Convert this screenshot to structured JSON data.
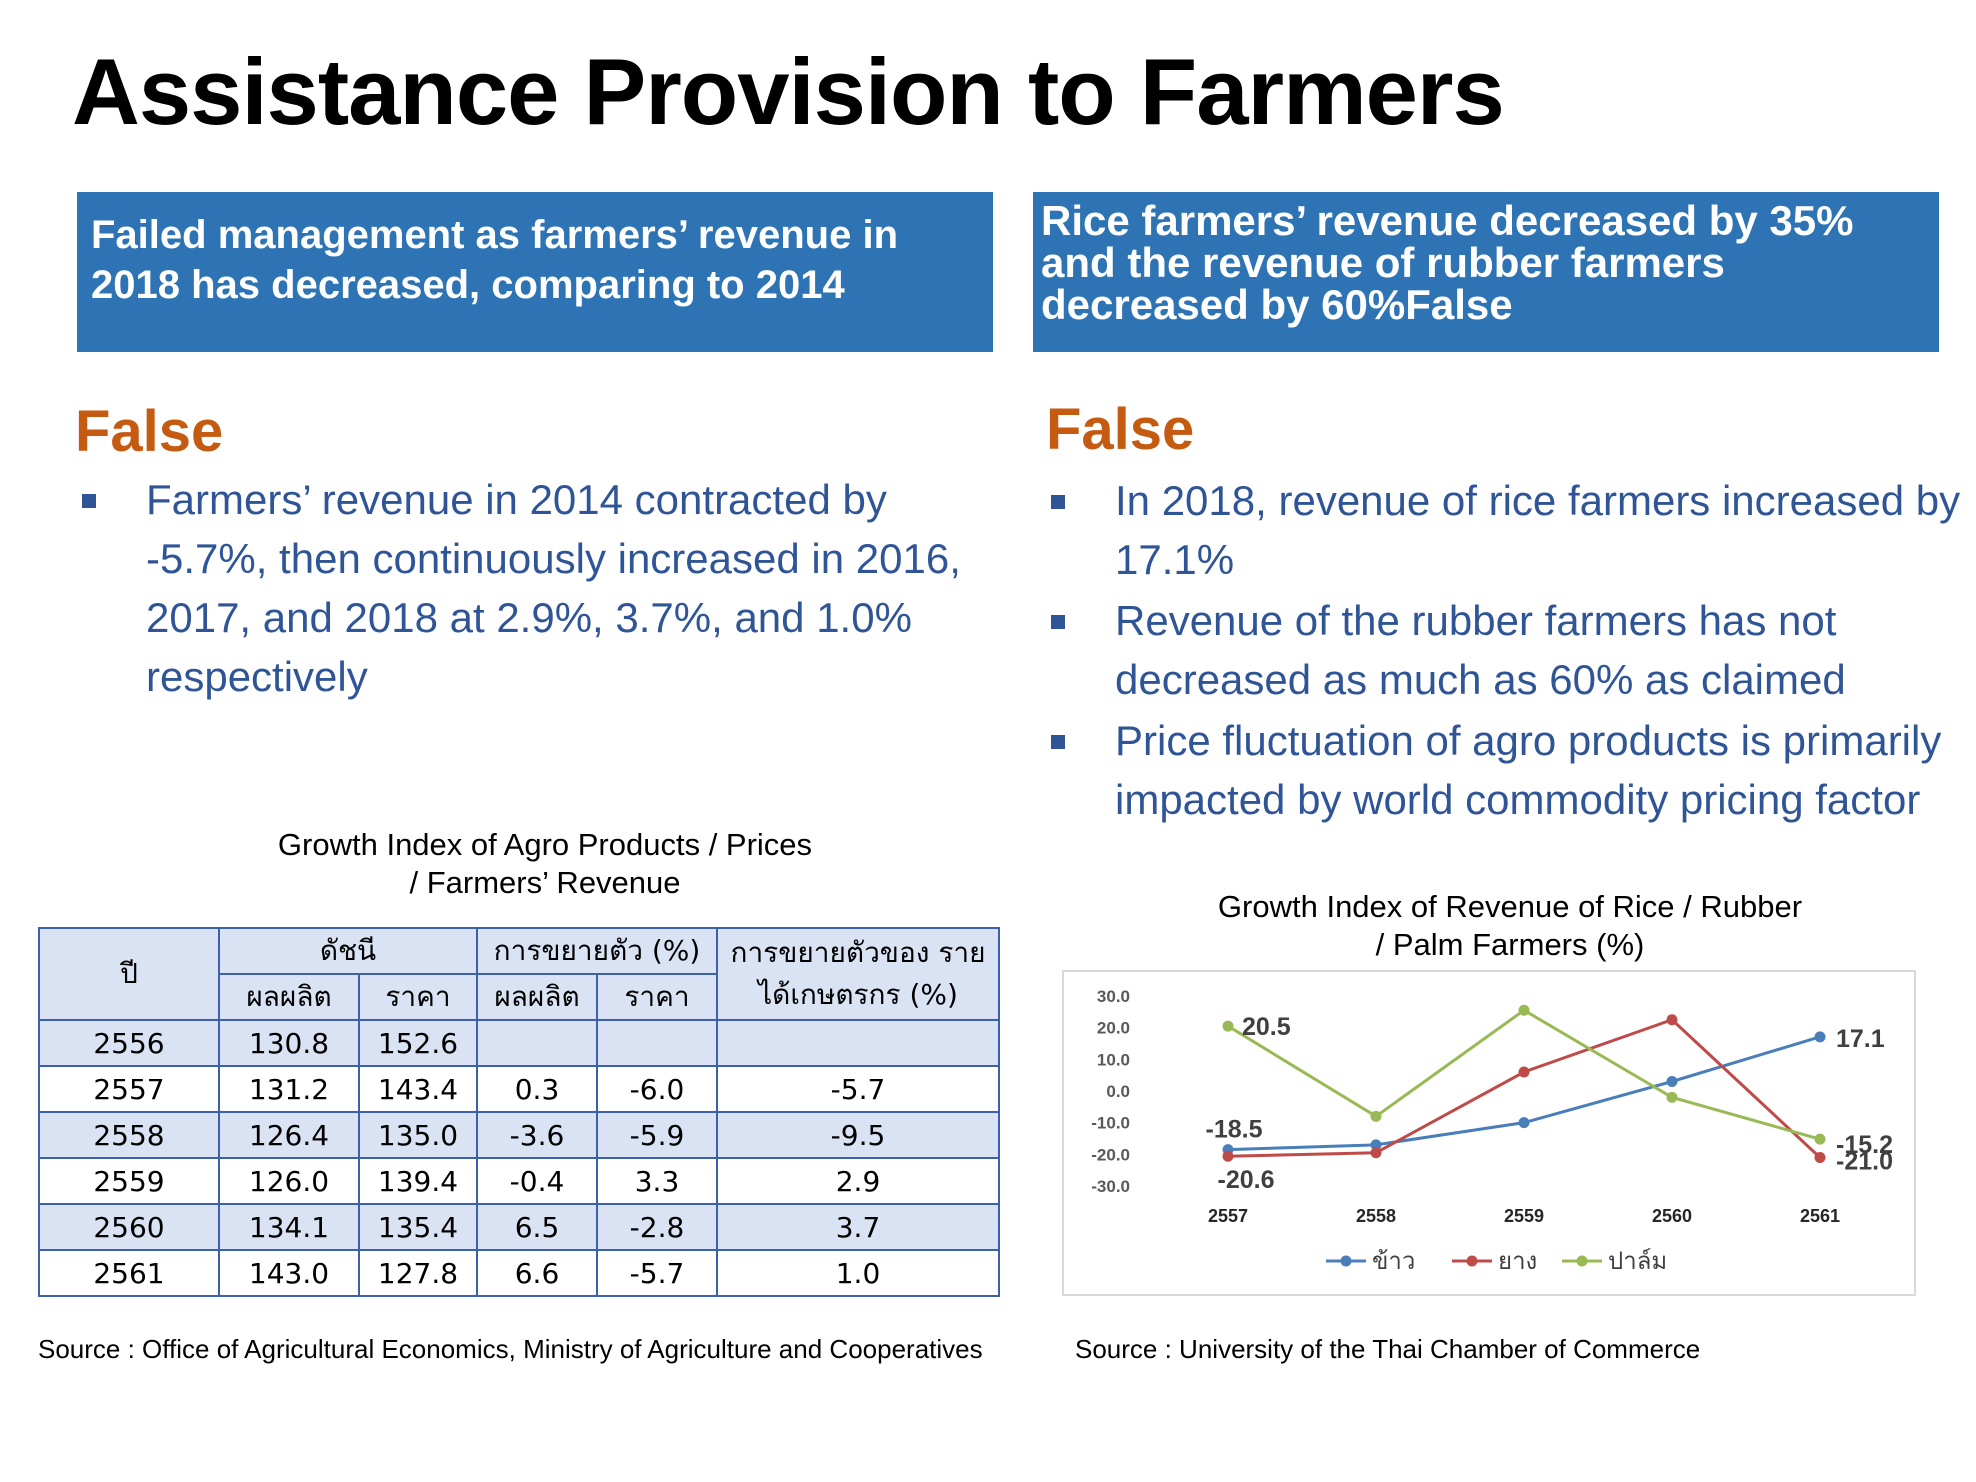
{
  "title": "Assistance Provision to Farmers",
  "left": {
    "claim": "Failed management as farmers’ revenue in 2018 has decreased, comparing to 2014",
    "verdict": "False",
    "bullets": [
      "Farmers’ revenue in 2014 contracted by -5.7%, then continuously increased in 2016, 2017, and 2018 at 2.9%, 3.7%, and 1.0% respectively"
    ],
    "table_caption_line1": "Growth Index of Agro Products / Prices",
    "table_caption_line2": "/ Farmers’ Revenue",
    "table": {
      "header": {
        "year": "ปี",
        "index": "ดัชนี",
        "growth": "การขยายตัว (%)",
        "revenue_growth": "การขยายตัวของ รายได้เกษตรกร (%)",
        "production": "ผลผลิต",
        "price": "ราคา"
      },
      "rows": [
        [
          "2556",
          "130.8",
          "152.6",
          "",
          "",
          ""
        ],
        [
          "2557",
          "131.2",
          "143.4",
          "0.3",
          "-6.0",
          "-5.7"
        ],
        [
          "2558",
          "126.4",
          "135.0",
          "-3.6",
          "-5.9",
          "-9.5"
        ],
        [
          "2559",
          "126.0",
          "139.4",
          "-0.4",
          "3.3",
          "2.9"
        ],
        [
          "2560",
          "134.1",
          "135.4",
          "6.5",
          "-2.8",
          "3.7"
        ],
        [
          "2561",
          "143.0",
          "127.8",
          "6.6",
          "-5.7",
          "1.0"
        ]
      ]
    },
    "source": "Source : Office of Agricultural Economics, Ministry of Agriculture and Cooperatives"
  },
  "right": {
    "claim": "Rice farmers’ revenue decreased by 35% and the revenue of rubber farmers decreased by 60%False",
    "verdict": "False",
    "bullets": [
      "In 2018, revenue of rice farmers increased by 17.1%",
      "Revenue of the rubber farmers has not decreased as much as 60% as claimed",
      "Price fluctuation of agro products is primarily impacted by world commodity pricing factor"
    ],
    "chart_caption_line1": "Growth Index of Revenue of Rice / Rubber",
    "chart_caption_line2": "/ Palm Farmers (%)",
    "source": "Source : University of the Thai Chamber of Commerce"
  },
  "chart_data": {
    "type": "line",
    "x": [
      "2557",
      "2558",
      "2559",
      "2560",
      "2561"
    ],
    "ylim": [
      -30,
      30
    ],
    "yticks": [
      "30.0",
      "20.0",
      "10.0",
      "0.0",
      "-10.0",
      "-20.0",
      "-30.0"
    ],
    "grid": false,
    "legend": "bottom",
    "series": [
      {
        "name": "ข้าว",
        "color": "#4a7ebb",
        "values": [
          -18.5,
          -17.0,
          -10.0,
          3.0,
          17.1
        ]
      },
      {
        "name": "ยาง",
        "color": "#be4b48",
        "values": [
          -20.6,
          -19.5,
          6.0,
          22.5,
          -21.0
        ]
      },
      {
        "name": "ปาล์ม",
        "color": "#98b954",
        "values": [
          20.5,
          -8.0,
          25.5,
          -2.0,
          -15.2
        ]
      }
    ],
    "data_labels": [
      "20.5",
      "-18.5",
      "-20.6",
      "17.1",
      "-15.2",
      "-21.0"
    ]
  }
}
